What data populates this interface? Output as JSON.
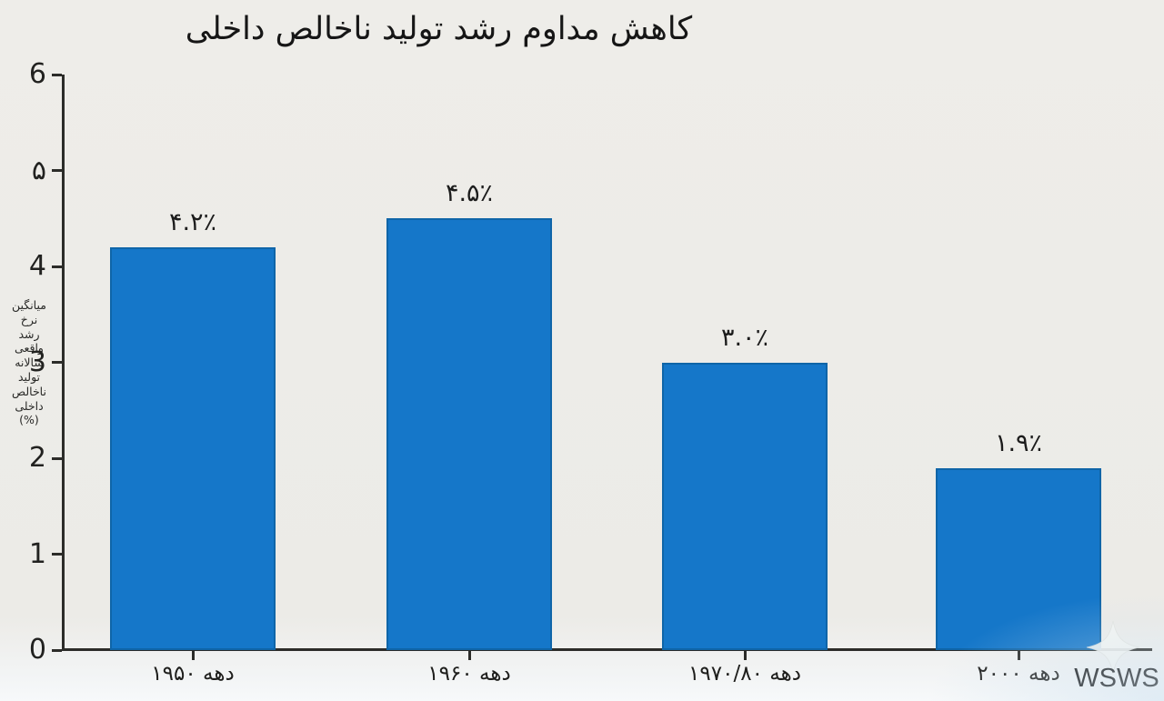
{
  "watermark": {
    "text": "WSWS",
    "icon": "four-pointed-sparkle"
  },
  "chart_data": {
    "type": "bar",
    "title": "کاهش مداوم رشد تولید ناخالص داخلی",
    "categories": [
      "دهه ۱۹۵۰",
      "دهه ۱۹۶۰",
      "دهه ۱۹۷۰/۸۰",
      "دهه ۲۰۰۰"
    ],
    "values": [
      4.2,
      4.5,
      3.0,
      1.9
    ],
    "value_labels": [
      "۴.۲٪",
      "۴.۵٪",
      "۳.۰٪",
      "۱.۹٪"
    ],
    "xlabel": "",
    "ylabel_lines": [
      "میانگین",
      "نرخ",
      "رشد",
      "واقعی",
      "سالانه",
      "تولید",
      "ناخالص",
      "داخلی",
      "(%)"
    ],
    "ytick_labels": [
      "6",
      "۵",
      "4",
      "3",
      "2",
      "1",
      "0"
    ],
    "ytick_values": [
      6,
      5,
      4,
      3,
      2,
      1,
      0
    ],
    "ylim": [
      0,
      6
    ],
    "grid": false,
    "legend_position": "none",
    "bar_color": "#1577c9",
    "bar_border_color": "#0f65a8"
  }
}
